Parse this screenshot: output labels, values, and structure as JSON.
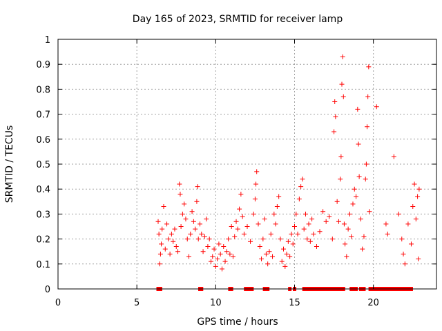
{
  "chart_data": {
    "type": "scatter",
    "title": "Day 165 of 2023, SRMTID for receiver lamp",
    "xlabel": "GPS time / hours",
    "ylabel": "SRMTID / TECUs",
    "xlim": [
      0,
      24
    ],
    "ylim": [
      0,
      1
    ],
    "xticks": [
      0,
      5,
      10,
      15,
      20
    ],
    "xtick_labels": [
      "0",
      "5",
      "10",
      "15",
      "20"
    ],
    "yticks": [
      0,
      0.1,
      0.2,
      0.3,
      0.4,
      0.5,
      0.6,
      0.7,
      0.8,
      0.9,
      1
    ],
    "ytick_labels": [
      "0",
      "0.1",
      "0.2",
      "0.3",
      "0.4",
      "0.5",
      "0.6",
      "0.7",
      "0.8",
      "0.9",
      "1"
    ],
    "grid": true,
    "marker": "+",
    "color": "#ff0000",
    "series": [
      {
        "name": "SRMTID",
        "points": [
          [
            6.35,
            0.27
          ],
          [
            6.4,
            0.22
          ],
          [
            6.45,
            0.1
          ],
          [
            6.5,
            0.14
          ],
          [
            6.55,
            0.18
          ],
          [
            6.6,
            0.24
          ],
          [
            6.7,
            0.33
          ],
          [
            6.8,
            0.16
          ],
          [
            6.9,
            0.26
          ],
          [
            7.0,
            0.2
          ],
          [
            7.1,
            0.14
          ],
          [
            7.2,
            0.22
          ],
          [
            7.3,
            0.19
          ],
          [
            7.4,
            0.24
          ],
          [
            7.5,
            0.17
          ],
          [
            7.6,
            0.15
          ],
          [
            7.7,
            0.42
          ],
          [
            7.75,
            0.38
          ],
          [
            7.8,
            0.25
          ],
          [
            7.9,
            0.3
          ],
          [
            8.0,
            0.34
          ],
          [
            8.1,
            0.28
          ],
          [
            8.2,
            0.2
          ],
          [
            8.3,
            0.13
          ],
          [
            8.4,
            0.22
          ],
          [
            8.5,
            0.31
          ],
          [
            8.6,
            0.27
          ],
          [
            8.7,
            0.24
          ],
          [
            8.8,
            0.35
          ],
          [
            8.85,
            0.41
          ],
          [
            8.9,
            0.2
          ],
          [
            9.0,
            0.26
          ],
          [
            9.1,
            0.22
          ],
          [
            9.2,
            0.15
          ],
          [
            9.3,
            0.21
          ],
          [
            9.4,
            0.28
          ],
          [
            9.5,
            0.17
          ],
          [
            9.6,
            0.2
          ],
          [
            9.7,
            0.11
          ],
          [
            9.8,
            0.13
          ],
          [
            9.9,
            0.16
          ],
          [
            10.0,
            0.09
          ],
          [
            10.1,
            0.12
          ],
          [
            10.2,
            0.18
          ],
          [
            10.3,
            0.14
          ],
          [
            10.4,
            0.08
          ],
          [
            10.5,
            0.17
          ],
          [
            10.6,
            0.11
          ],
          [
            10.7,
            0.15
          ],
          [
            10.8,
            0.2
          ],
          [
            10.9,
            0.14
          ],
          [
            11.0,
            0.25
          ],
          [
            11.1,
            0.13
          ],
          [
            11.2,
            0.21
          ],
          [
            11.3,
            0.27
          ],
          [
            11.4,
            0.24
          ],
          [
            11.5,
            0.32
          ],
          [
            11.6,
            0.38
          ],
          [
            11.7,
            0.29
          ],
          [
            11.8,
            0.22
          ],
          [
            12.0,
            0.25
          ],
          [
            12.2,
            0.19
          ],
          [
            12.4,
            0.3
          ],
          [
            12.5,
            0.36
          ],
          [
            12.55,
            0.42
          ],
          [
            12.6,
            0.47
          ],
          [
            12.7,
            0.26
          ],
          [
            12.8,
            0.17
          ],
          [
            12.9,
            0.12
          ],
          [
            13.0,
            0.2
          ],
          [
            13.1,
            0.28
          ],
          [
            13.2,
            0.14
          ],
          [
            13.3,
            0.1
          ],
          [
            13.4,
            0.15
          ],
          [
            13.5,
            0.22
          ],
          [
            13.6,
            0.13
          ],
          [
            13.7,
            0.3
          ],
          [
            13.8,
            0.26
          ],
          [
            13.9,
            0.33
          ],
          [
            14.0,
            0.37
          ],
          [
            14.1,
            0.2
          ],
          [
            14.2,
            0.11
          ],
          [
            14.3,
            0.16
          ],
          [
            14.4,
            0.09
          ],
          [
            14.5,
            0.14
          ],
          [
            14.6,
            0.19
          ],
          [
            14.7,
            0.13
          ],
          [
            14.8,
            0.22
          ],
          [
            14.9,
            0.18
          ],
          [
            15.0,
            0.25
          ],
          [
            15.1,
            0.3
          ],
          [
            15.2,
            0.22
          ],
          [
            15.3,
            0.36
          ],
          [
            15.4,
            0.41
          ],
          [
            15.5,
            0.44
          ],
          [
            15.6,
            0.24
          ],
          [
            15.7,
            0.3
          ],
          [
            15.8,
            0.2
          ],
          [
            15.9,
            0.26
          ],
          [
            16.0,
            0.19
          ],
          [
            16.1,
            0.28
          ],
          [
            16.2,
            0.22
          ],
          [
            16.4,
            0.17
          ],
          [
            16.6,
            0.23
          ],
          [
            16.8,
            0.31
          ],
          [
            17.0,
            0.27
          ],
          [
            17.2,
            0.29
          ],
          [
            17.4,
            0.2
          ],
          [
            17.5,
            0.63
          ],
          [
            17.55,
            0.75
          ],
          [
            17.6,
            0.69
          ],
          [
            17.7,
            0.35
          ],
          [
            17.8,
            0.27
          ],
          [
            17.9,
            0.44
          ],
          [
            17.95,
            0.53
          ],
          [
            18.0,
            0.82
          ],
          [
            18.05,
            0.93
          ],
          [
            18.1,
            0.77
          ],
          [
            18.15,
            0.26
          ],
          [
            18.2,
            0.18
          ],
          [
            18.3,
            0.13
          ],
          [
            18.4,
            0.24
          ],
          [
            18.5,
            0.3
          ],
          [
            18.6,
            0.21
          ],
          [
            18.7,
            0.34
          ],
          [
            18.8,
            0.4
          ],
          [
            18.9,
            0.37
          ],
          [
            19.0,
            0.72
          ],
          [
            19.05,
            0.58
          ],
          [
            19.1,
            0.45
          ],
          [
            19.2,
            0.28
          ],
          [
            19.3,
            0.16
          ],
          [
            19.4,
            0.21
          ],
          [
            19.5,
            0.44
          ],
          [
            19.55,
            0.5
          ],
          [
            19.6,
            0.65
          ],
          [
            19.65,
            0.77
          ],
          [
            19.7,
            0.89
          ],
          [
            19.75,
            0.31
          ],
          [
            20.2,
            0.73
          ],
          [
            20.8,
            0.26
          ],
          [
            20.9,
            0.22
          ],
          [
            21.3,
            0.53
          ],
          [
            21.6,
            0.3
          ],
          [
            21.8,
            0.2
          ],
          [
            21.9,
            0.14
          ],
          [
            22.0,
            0.1
          ],
          [
            22.2,
            0.26
          ],
          [
            22.4,
            0.18
          ],
          [
            22.5,
            0.33
          ],
          [
            22.6,
            0.42
          ],
          [
            22.7,
            0.28
          ],
          [
            22.8,
            0.37
          ],
          [
            22.85,
            0.12
          ],
          [
            22.9,
            0.4
          ]
        ]
      }
    ],
    "zero_points_x": [
      6.35,
      6.5,
      9.0,
      9.1,
      10.9,
      11.0,
      11.9,
      12.0,
      12.1,
      12.2,
      12.3,
      13.1,
      13.3,
      14.7,
      15.0,
      15.6,
      15.7,
      15.8,
      16.0,
      16.1,
      16.2,
      16.3,
      16.4,
      16.5,
      16.6,
      16.7,
      16.8,
      16.9,
      17.0,
      17.1,
      17.2,
      17.3,
      17.4,
      17.5,
      17.6,
      17.7,
      17.8,
      17.9,
      18.0,
      18.1,
      18.6,
      18.7,
      18.8,
      18.9,
      19.2,
      19.3,
      19.4,
      19.8,
      19.9,
      20.0,
      20.1,
      20.2,
      20.3,
      20.4,
      20.5,
      20.6,
      20.7,
      20.8,
      20.9,
      21.0,
      21.1,
      21.2,
      21.3,
      21.4,
      21.5,
      21.6,
      21.7,
      21.8,
      22.0,
      22.2,
      22.4
    ]
  }
}
